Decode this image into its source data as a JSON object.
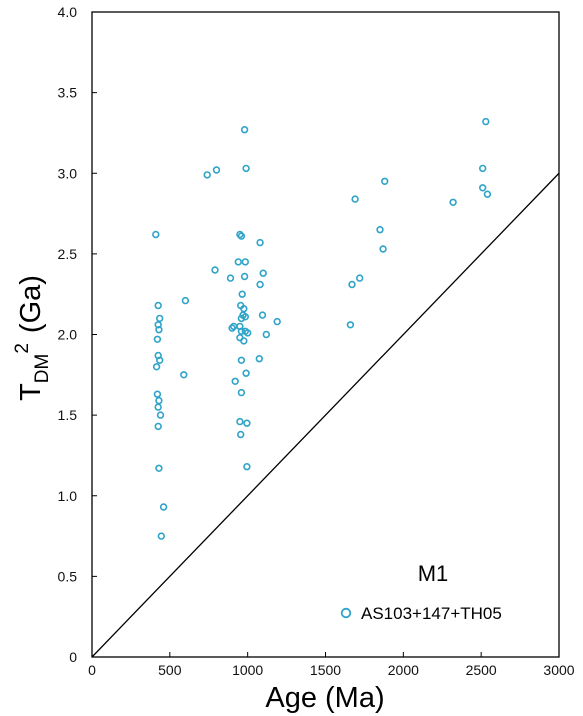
{
  "chart_data": {
    "type": "scatter",
    "title": "",
    "xlabel": "Age (Ma)",
    "ylabel_main": "T",
    "ylabel_sub": "DM",
    "ylabel_sup": "2",
    "ylabel_unit": "(Ga)",
    "xlim": [
      0,
      3000
    ],
    "ylim": [
      0,
      4.0
    ],
    "xticks": [
      "0",
      "500",
      "1000",
      "1500",
      "2000",
      "2500",
      "3000"
    ],
    "yticks": [
      "0",
      "0.5",
      "1.0",
      "1.5",
      "2.0",
      "2.5",
      "3.0",
      "3.5",
      "4.0"
    ],
    "grid": false,
    "legend_position": "bottom-right",
    "annotation": "M1",
    "reference_line": {
      "x": [
        0,
        3000
      ],
      "y": [
        0,
        3.0
      ]
    },
    "series": [
      {
        "name": "AS103+147+TH05",
        "color": "#2fa4c8",
        "marker": "open-circle",
        "points": [
          [
            410,
            2.62
          ],
          [
            425,
            2.18
          ],
          [
            435,
            2.1
          ],
          [
            425,
            2.06
          ],
          [
            430,
            2.03
          ],
          [
            420,
            1.97
          ],
          [
            425,
            1.87
          ],
          [
            435,
            1.84
          ],
          [
            415,
            1.8
          ],
          [
            420,
            1.63
          ],
          [
            430,
            1.59
          ],
          [
            425,
            1.55
          ],
          [
            440,
            1.5
          ],
          [
            425,
            1.43
          ],
          [
            430,
            1.17
          ],
          [
            460,
            0.93
          ],
          [
            445,
            0.75
          ],
          [
            600,
            2.21
          ],
          [
            590,
            1.75
          ],
          [
            740,
            2.99
          ],
          [
            800,
            3.02
          ],
          [
            790,
            2.4
          ],
          [
            890,
            2.35
          ],
          [
            900,
            2.04
          ],
          [
            910,
            2.05
          ],
          [
            920,
            1.71
          ],
          [
            940,
            2.45
          ],
          [
            950,
            2.62
          ],
          [
            960,
            2.61
          ],
          [
            965,
            2.25
          ],
          [
            955,
            2.18
          ],
          [
            975,
            2.16
          ],
          [
            970,
            2.12
          ],
          [
            960,
            2.1
          ],
          [
            985,
            2.11
          ],
          [
            950,
            2.05
          ],
          [
            960,
            2.02
          ],
          [
            985,
            2.02
          ],
          [
            950,
            1.98
          ],
          [
            975,
            1.96
          ],
          [
            1000,
            2.01
          ],
          [
            960,
            1.84
          ],
          [
            990,
            1.76
          ],
          [
            960,
            1.64
          ],
          [
            950,
            1.46
          ],
          [
            995,
            1.45
          ],
          [
            955,
            1.38
          ],
          [
            995,
            1.18
          ],
          [
            980,
            3.27
          ],
          [
            990,
            3.03
          ],
          [
            985,
            2.45
          ],
          [
            980,
            2.36
          ],
          [
            1080,
            2.57
          ],
          [
            1100,
            2.38
          ],
          [
            1080,
            2.31
          ],
          [
            1095,
            2.12
          ],
          [
            1120,
            2.0
          ],
          [
            1075,
            1.85
          ],
          [
            1190,
            2.08
          ],
          [
            1660,
            2.06
          ],
          [
            1670,
            2.31
          ],
          [
            1690,
            2.84
          ],
          [
            1720,
            2.35
          ],
          [
            1850,
            2.65
          ],
          [
            1870,
            2.53
          ],
          [
            1880,
            2.95
          ],
          [
            2320,
            2.82
          ],
          [
            2510,
            3.03
          ],
          [
            2510,
            2.91
          ],
          [
            2540,
            2.87
          ],
          [
            2530,
            3.32
          ]
        ]
      }
    ]
  }
}
